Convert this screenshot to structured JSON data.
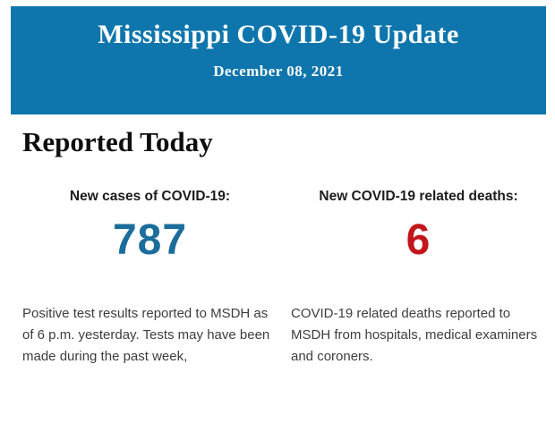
{
  "header": {
    "title": "Mississippi COVID-19 Update",
    "date": "December 08, 2021",
    "background_color": "#0f76ad",
    "text_color": "#ffffff"
  },
  "section": {
    "heading": "Reported Today"
  },
  "stats": {
    "cases": {
      "label": "New cases of COVID-19:",
      "value": "787",
      "value_color": "#1b6d9c",
      "description": "Positive test results reported to MSDH as of 6 p.m. yesterday. Tests may have been made during the past week,"
    },
    "deaths": {
      "label": "New COVID-19 related deaths:",
      "value": "6",
      "value_color": "#c3161c",
      "description": "COVID-19 related deaths reported to MSDH from hospitals, medical examiners and coroners."
    }
  }
}
